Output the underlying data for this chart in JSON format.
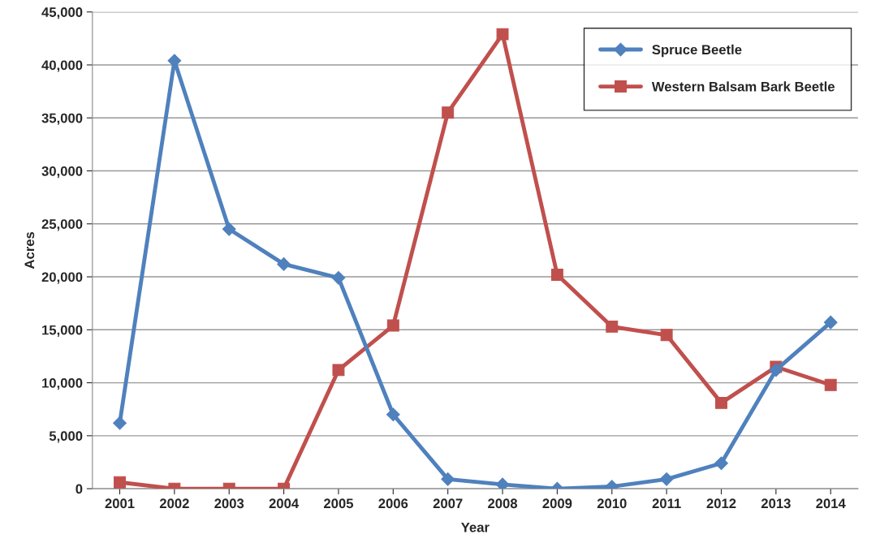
{
  "chart_data": {
    "type": "line",
    "xlabel": "Year",
    "ylabel": "Acres",
    "categories": [
      "2001",
      "2002",
      "2003",
      "2004",
      "2005",
      "2006",
      "2007",
      "2008",
      "2009",
      "2010",
      "2011",
      "2012",
      "2013",
      "2014"
    ],
    "series": [
      {
        "name": "Spruce Beetle",
        "color": "#4f81bd",
        "marker": "diamond",
        "values": [
          6200,
          40400,
          24500,
          21200,
          19900,
          7000,
          900,
          400,
          0,
          200,
          900,
          2400,
          11200,
          15700
        ]
      },
      {
        "name": "Western Balsam Bark Beetle",
        "color": "#c0504d",
        "marker": "square",
        "values": [
          600,
          0,
          0,
          0,
          11200,
          15400,
          35500,
          42900,
          20200,
          15300,
          14500,
          8100,
          11500,
          9800
        ]
      }
    ],
    "ylim": [
      0,
      45000
    ],
    "yticks": [
      {
        "value": 0,
        "label": "0"
      },
      {
        "value": 5000,
        "label": "5,000"
      },
      {
        "value": 10000,
        "label": "10,000"
      },
      {
        "value": 15000,
        "label": "15,000"
      },
      {
        "value": 20000,
        "label": "20,000"
      },
      {
        "value": 25000,
        "label": "25,000"
      },
      {
        "value": 30000,
        "label": "30,000"
      },
      {
        "value": 35000,
        "label": "35,000"
      },
      {
        "value": 40000,
        "label": "40,000"
      },
      {
        "value": 45000,
        "label": "45,000"
      }
    ],
    "grid": "y",
    "legend": "top right",
    "line_style": "solid"
  }
}
